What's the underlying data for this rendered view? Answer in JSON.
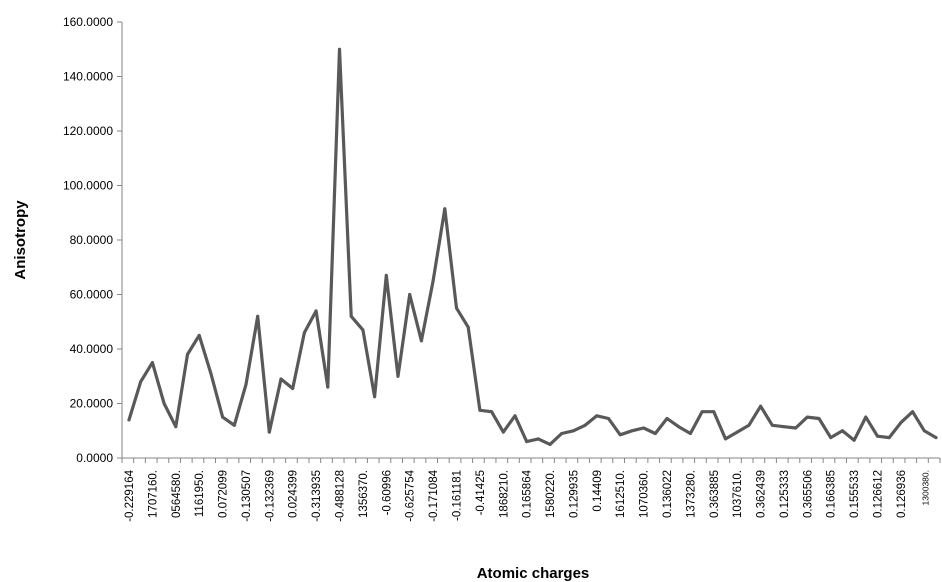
{
  "chart_data": {
    "type": "line",
    "title": "",
    "xlabel": "Atomic charges",
    "ylabel": "Anisotropy",
    "ylim": [
      0,
      160
    ],
    "yticks": [
      "0.0000",
      "20.0000",
      "40.0000",
      "60.0000",
      "80.0000",
      "100.0000",
      "120.0000",
      "140.0000",
      "160.0000"
    ],
    "grid": false,
    "legend": "none",
    "line_color": "#595959",
    "x_tick_labels": [
      "-0.229164",
      "1707160.",
      "0564580.",
      "1161950.",
      "0.072099",
      "-0.130507",
      "-0.132369",
      "0.024399",
      "-0.313935",
      "-0.488128",
      "1356370.",
      "-0.60996",
      "-0.625754",
      "-0.171084",
      "-0.161181",
      "-0.41425",
      "1868210.",
      "0.165864",
      "1580220.",
      "0.129935",
      "0.14409",
      "1612510.",
      "1070360.",
      "0.136022",
      "1373280.",
      "0.363885",
      "1037610.",
      "0.362439",
      "0.125333",
      "0.365506",
      "0.166385",
      "0.155533",
      "0.126612",
      "0.126936",
      "1300380."
    ],
    "values": [
      14,
      28,
      35,
      20,
      11.5,
      38,
      45,
      31,
      15,
      12,
      27,
      52,
      9.5,
      29,
      25.5,
      46,
      54,
      26,
      150,
      52,
      47,
      22.5,
      67,
      30,
      60,
      43,
      65,
      91.5,
      55,
      48,
      17.5,
      17,
      9.5,
      15.5,
      6,
      7,
      5,
      9,
      10,
      12,
      15.5,
      14.5,
      8.5,
      10,
      11,
      9,
      14.5,
      11.5,
      9,
      17,
      17,
      7,
      9.5,
      12,
      19,
      12,
      11.5,
      11,
      15,
      14.5,
      7.5,
      10,
      6.5,
      15,
      8,
      7.5,
      13,
      17,
      10,
      7.5
    ]
  }
}
